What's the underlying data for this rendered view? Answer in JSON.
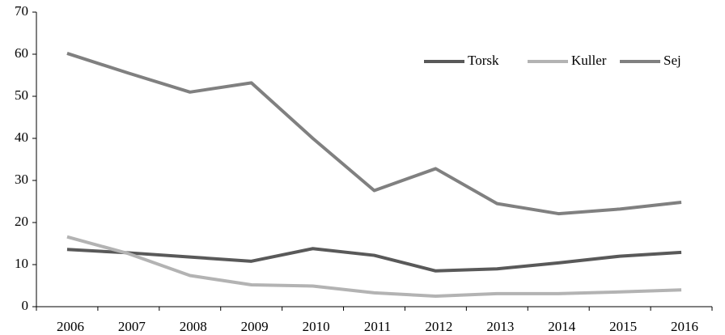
{
  "chart_data": {
    "type": "line",
    "categories": [
      "2006",
      "2007",
      "2008",
      "2009",
      "2010",
      "2011",
      "2012",
      "2013",
      "2014",
      "2015",
      "2016"
    ],
    "series": [
      {
        "name": "Torsk",
        "color": "#595959",
        "values": [
          13.6,
          12.8,
          11.8,
          10.8,
          13.8,
          12.2,
          8.5,
          9.0,
          10.4,
          12.0,
          12.9
        ]
      },
      {
        "name": "Kuller",
        "color": "#b3b3b3",
        "values": [
          16.6,
          12.6,
          7.4,
          5.2,
          4.9,
          3.3,
          2.5,
          3.1,
          3.1,
          3.5,
          4.0
        ]
      },
      {
        "name": "Sej",
        "color": "#808080",
        "values": [
          60.2,
          55.5,
          51.0,
          53.2,
          40.0,
          27.6,
          32.8,
          24.5,
          22.1,
          23.2,
          24.8
        ]
      }
    ],
    "ylim": [
      0,
      70
    ],
    "yticks": [
      0,
      10,
      20,
      30,
      40,
      50,
      60,
      70
    ],
    "grid": false,
    "legend": "top-right"
  }
}
